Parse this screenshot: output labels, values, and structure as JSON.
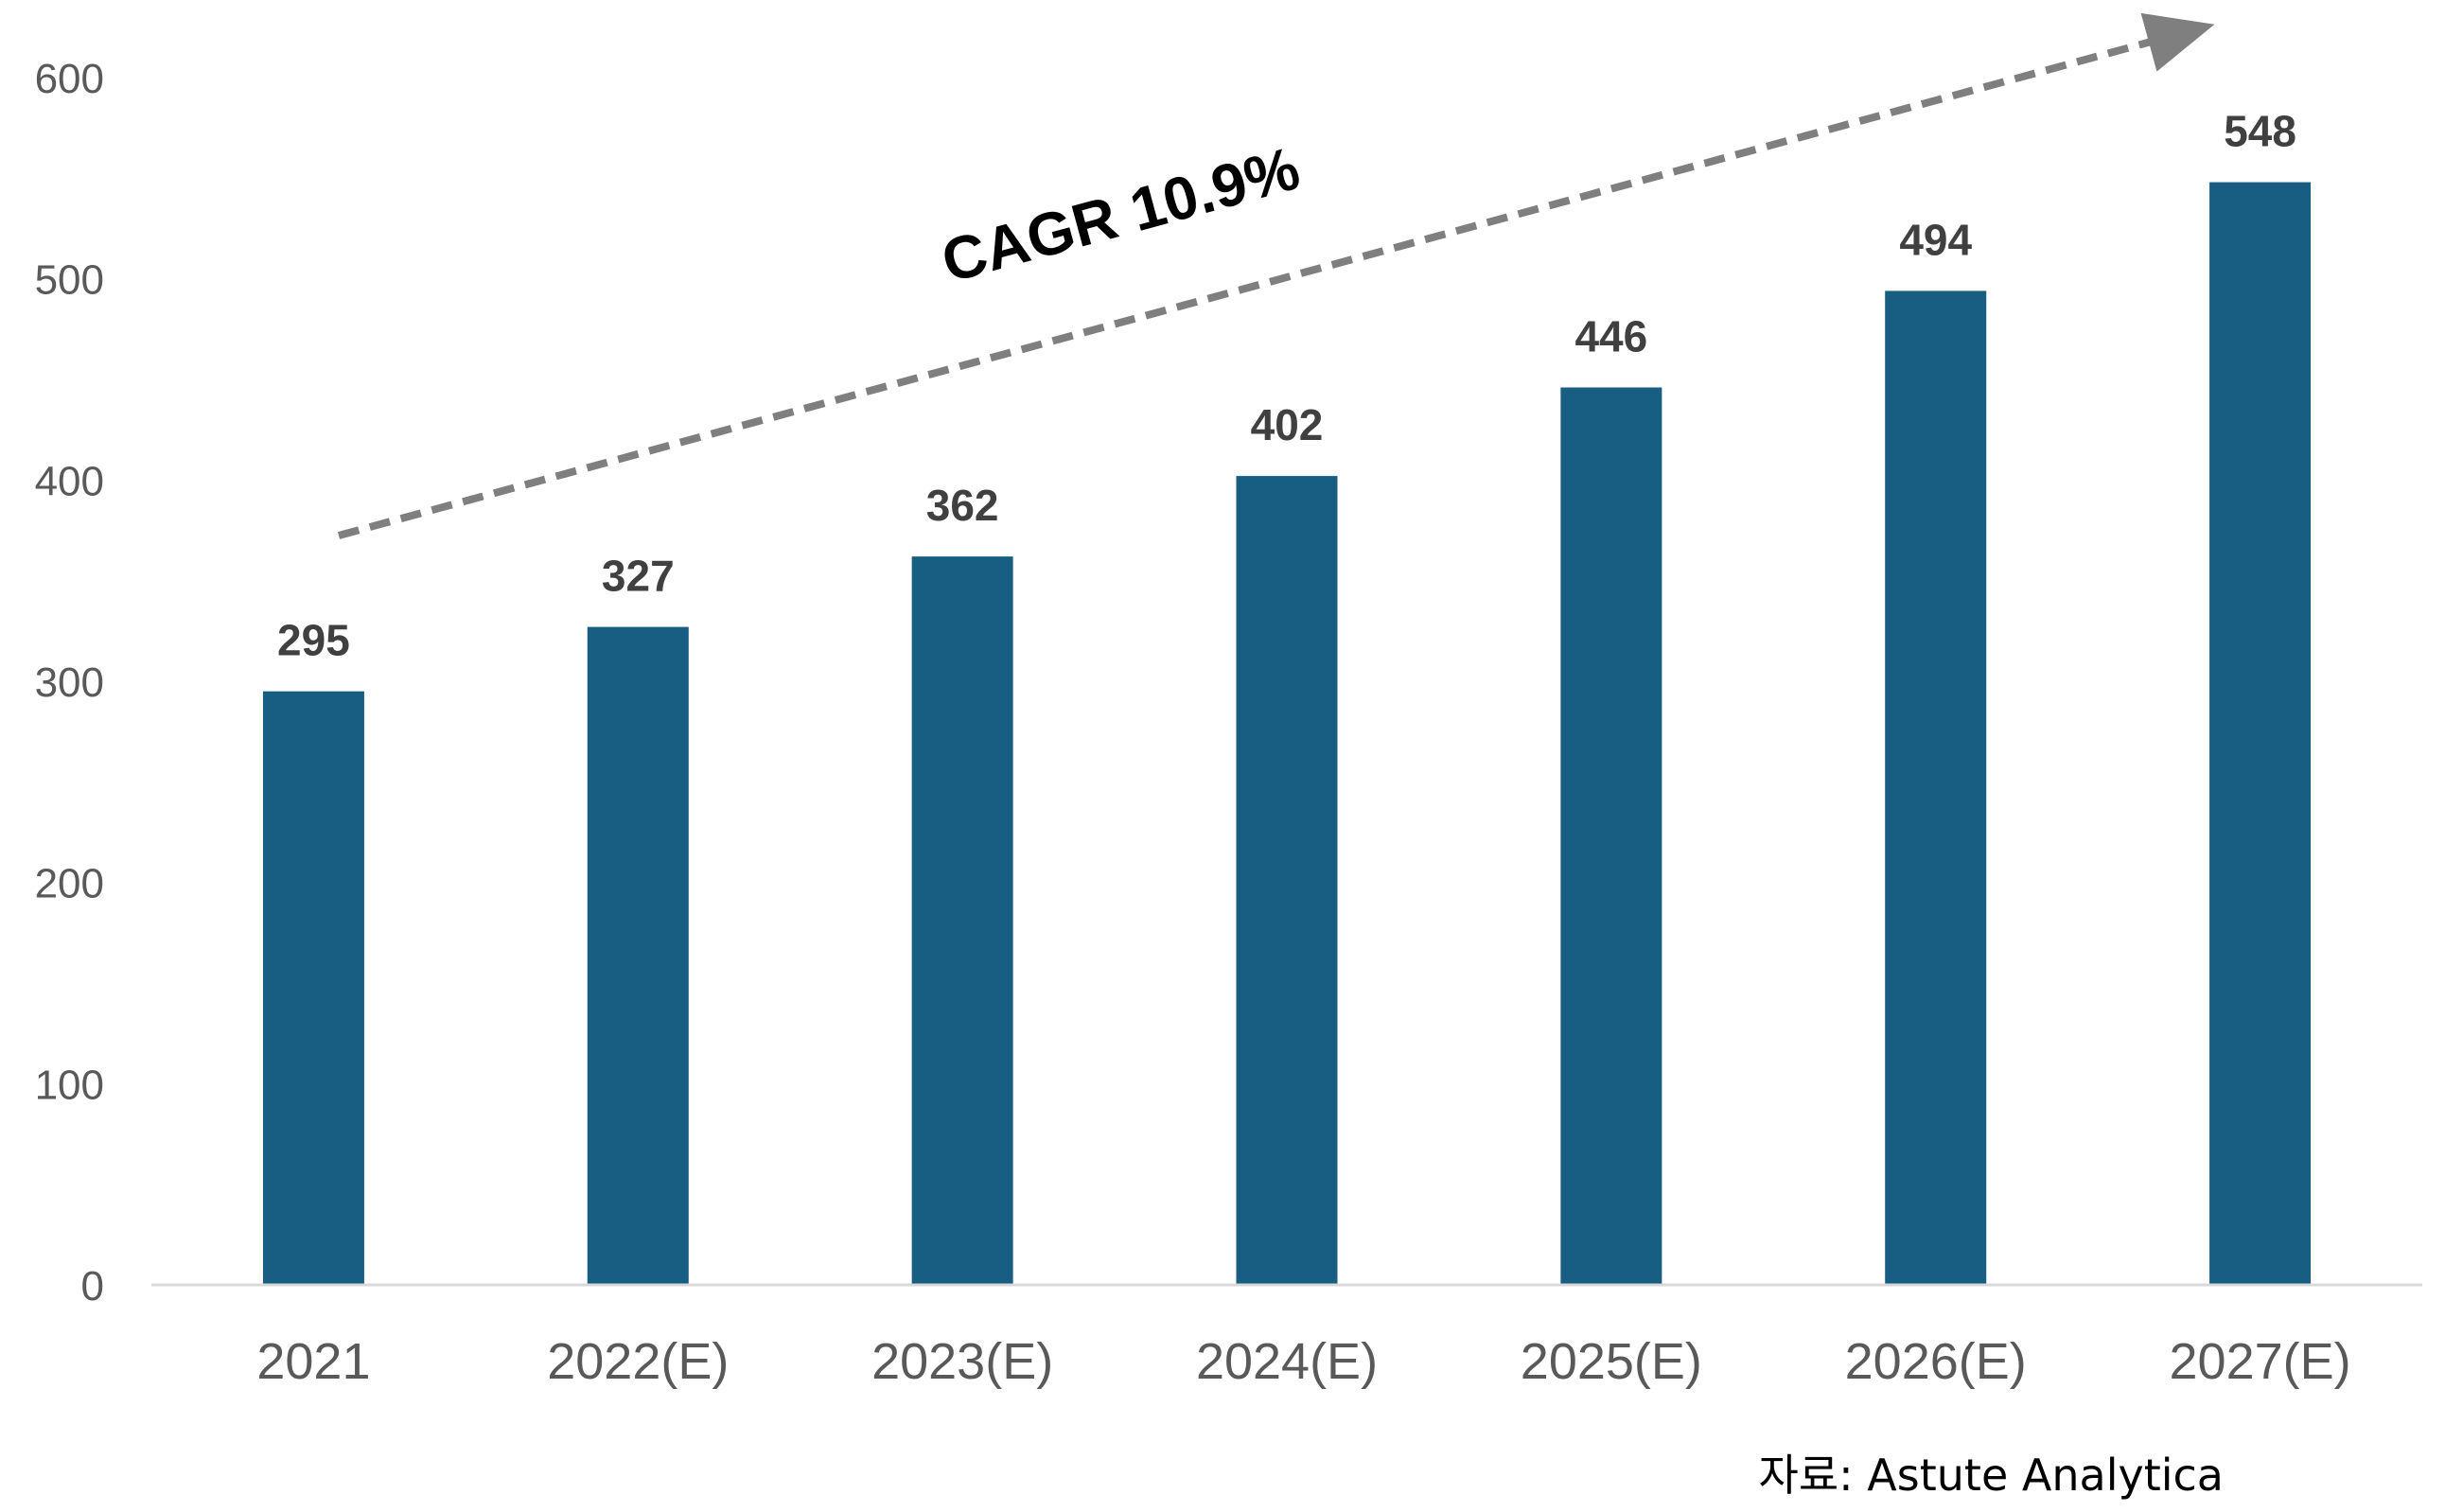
{
  "chart_data": {
    "type": "bar",
    "categories": [
      "2021",
      "2022(E)",
      "2023(E)",
      "2024(E)",
      "2025(E)",
      "2026(E)",
      "2027(E)"
    ],
    "values": [
      295,
      327,
      362,
      402,
      446,
      494,
      548
    ],
    "data_labels": [
      "295",
      "327",
      "362",
      "402",
      "446",
      "494",
      "548"
    ],
    "ylim": [
      0,
      600
    ],
    "yticks": [
      0,
      100,
      200,
      300,
      400,
      500,
      600
    ],
    "ytick_labels": [
      "0",
      "100",
      "200",
      "300",
      "400",
      "500",
      "600"
    ],
    "grid": false,
    "legend": "none",
    "annotation": "CAGR 10.9%",
    "source": "자료: Astute Analytica",
    "colors": {
      "bar": "#175E82",
      "arrow": "#7F7F7F",
      "axis": "#D9D9D9",
      "tick_text": "#595959",
      "data_label_text": "#404040"
    }
  }
}
